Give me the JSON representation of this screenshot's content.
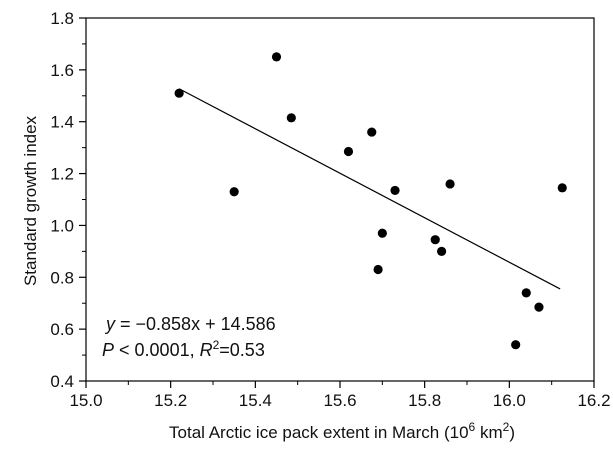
{
  "chart_data": {
    "type": "scatter",
    "title": "",
    "xlabel": {
      "text": "Total Arctic ice pack extent in March (10",
      "sup": "6",
      "mid": " km",
      "sup2": "2",
      "end": ")"
    },
    "ylabel": "Standard growth index",
    "xlim": [
      15.0,
      16.2
    ],
    "ylim": [
      0.4,
      1.8
    ],
    "x_ticks": [
      "15.0",
      "15.2",
      "15.4",
      "15.6",
      "15.8",
      "16.0",
      "16.2"
    ],
    "y_ticks": [
      "0.4",
      "0.6",
      "0.8",
      "1.0",
      "1.2",
      "1.4",
      "1.6",
      "1.8"
    ],
    "grid": false,
    "series": [
      {
        "points": [
          {
            "x": 15.22,
            "y": 1.51
          },
          {
            "x": 15.35,
            "y": 1.13
          },
          {
            "x": 15.45,
            "y": 1.65
          },
          {
            "x": 15.485,
            "y": 1.415
          },
          {
            "x": 15.62,
            "y": 1.285
          },
          {
            "x": 15.675,
            "y": 1.36
          },
          {
            "x": 15.69,
            "y": 0.83
          },
          {
            "x": 15.7,
            "y": 0.97
          },
          {
            "x": 15.73,
            "y": 1.135
          },
          {
            "x": 15.825,
            "y": 0.945
          },
          {
            "x": 15.84,
            "y": 0.9
          },
          {
            "x": 15.86,
            "y": 1.16
          },
          {
            "x": 16.015,
            "y": 0.54
          },
          {
            "x": 16.04,
            "y": 0.74
          },
          {
            "x": 16.07,
            "y": 0.685
          },
          {
            "x": 16.125,
            "y": 1.145
          }
        ]
      }
    ],
    "regression": {
      "x_start": 15.22,
      "x_end": 16.12,
      "slope": -0.858,
      "intercept": 14.586
    },
    "annotations": {
      "equation": {
        "y": "y",
        "rest": " = −0.858x + 14.586"
      },
      "stats": {
        "p": "P",
        "p_rest": " < 0.0001, ",
        "r": "R",
        "r_sup": "2",
        "r_rest": "=0.53"
      }
    },
    "colors": {
      "points": "#000000",
      "line": "#000000",
      "axis": "#000000"
    }
  }
}
